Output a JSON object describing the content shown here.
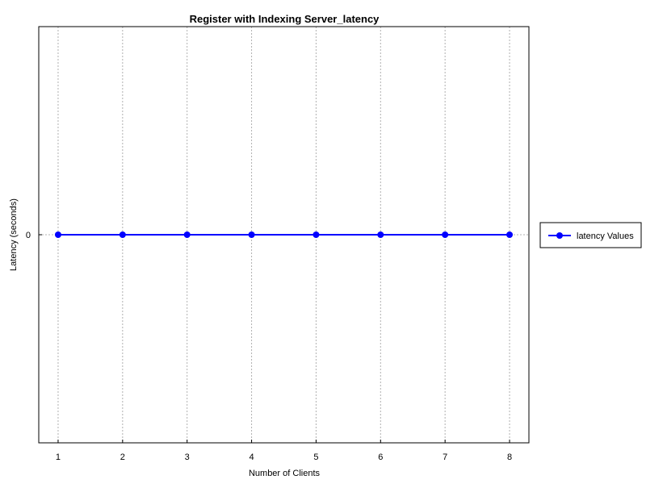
{
  "chart_data": {
    "type": "line",
    "title": "Register with Indexing Server_latency",
    "xlabel": "Number of Clients",
    "ylabel": "Latency (seconds)",
    "x": [
      1,
      2,
      3,
      4,
      5,
      6,
      7,
      8
    ],
    "x_ticks": [
      "1",
      "2",
      "3",
      "4",
      "5",
      "6",
      "7",
      "8"
    ],
    "y_ticks": [
      "0"
    ],
    "xlim": [
      0.7,
      8.3
    ],
    "ylim": [
      -0.05,
      0.05
    ],
    "series": [
      {
        "name": "latency Values",
        "values": [
          0,
          0,
          0,
          0,
          0,
          0,
          0,
          0
        ],
        "color": "#0000ff"
      }
    ],
    "grid": "vertical-dotted",
    "legend": "right"
  }
}
